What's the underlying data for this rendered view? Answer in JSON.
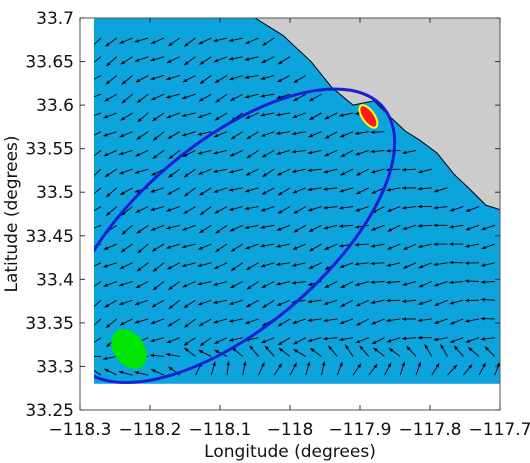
{
  "chart_data": {
    "type": "vector-field-map",
    "xlabel": "Longitude (degrees)",
    "ylabel": "Latitude (degrees)",
    "xlim": [
      -118.3,
      -117.7
    ],
    "ylim": [
      33.25,
      33.7
    ],
    "xticks": [
      -118.3,
      -118.2,
      -118.1,
      -118.0,
      -117.9,
      -117.8,
      -117.7
    ],
    "xtick_labels": [
      "−118.3",
      "−118.2",
      "−118.1",
      "−118",
      "−117.9",
      "−117.8",
      "−117.7"
    ],
    "yticks": [
      33.25,
      33.3,
      33.35,
      33.4,
      33.45,
      33.5,
      33.55,
      33.6,
      33.65,
      33.7
    ],
    "ytick_labels": [
      "33.25",
      "33.3",
      "33.35",
      "33.4",
      "33.45",
      "33.5",
      "33.55",
      "33.6",
      "33.65",
      "33.7"
    ],
    "data_extent": {
      "lon": [
        -118.28,
        -117.7
      ],
      "lat": [
        33.28,
        33.7
      ]
    },
    "colors": {
      "water": "#0da3dd",
      "land": "#cccccc",
      "coastline": "#000000",
      "arrows": "#000000",
      "ellipse": "#1a1fd6",
      "source_marker": "#00e600",
      "target_marker_fill": "#ff1a1a",
      "target_marker_edge": "#ffff00"
    },
    "coastline": [
      [
        -118.05,
        33.7
      ],
      [
        -118.01,
        33.68
      ],
      [
        -117.97,
        33.65
      ],
      [
        -117.94,
        33.62
      ],
      [
        -117.91,
        33.6
      ],
      [
        -117.88,
        33.605
      ],
      [
        -117.855,
        33.585
      ],
      [
        -117.835,
        33.57
      ],
      [
        -117.815,
        33.56
      ],
      [
        -117.79,
        33.545
      ],
      [
        -117.765,
        33.52
      ],
      [
        -117.745,
        33.505
      ],
      [
        -117.72,
        33.485
      ],
      [
        -117.7,
        33.48
      ]
    ],
    "ellipse": {
      "center_lon": -118.085,
      "center_lat": 33.45,
      "semi_major_deg": 0.285,
      "semi_minor_deg": 0.1,
      "angle_deg": 40
    },
    "source_region": {
      "lon": -118.23,
      "lat": 33.32,
      "rx_deg": 0.022,
      "ry_deg": 0.025,
      "angle_deg": 35
    },
    "target_region": {
      "lon": -117.888,
      "lat": 33.587,
      "rx_deg": 0.0085,
      "ry_deg": 0.015,
      "angle_deg": 35
    },
    "vector_grid": {
      "lon_start": -118.27,
      "lon_step": 0.0225,
      "lat_start": 33.29,
      "lat_step": 0.0215
    }
  }
}
